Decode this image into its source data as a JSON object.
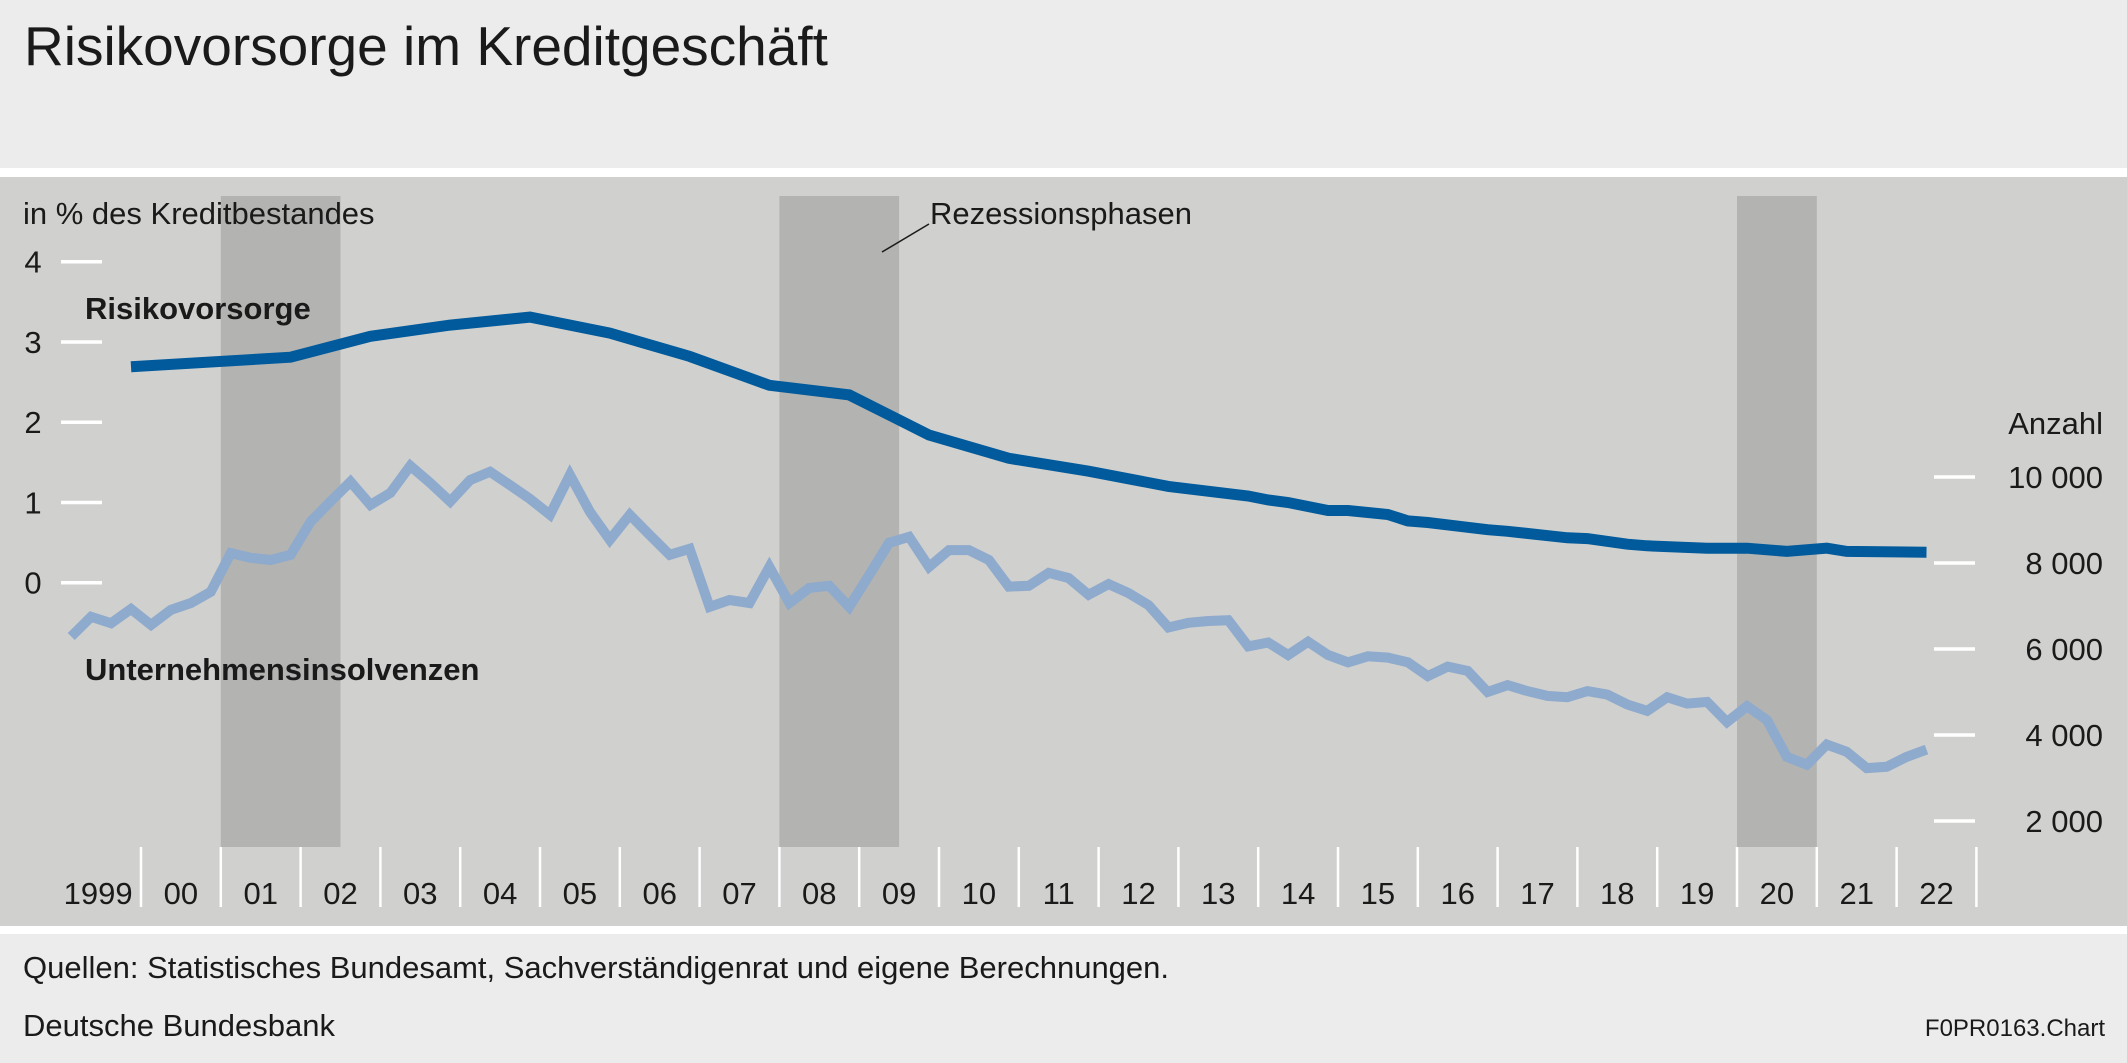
{
  "title": "Risikovorsorge im Kreditgeschäft",
  "footer": {
    "sources": "Quellen: Statistisches Bundesamt, Sachverständigenrat und eigene Berechnungen.",
    "publisher": "Deutsche Bundesbank",
    "chart_id": "F0PR0163.Chart"
  },
  "colors": {
    "background": "#ececec",
    "panel": "#d0d0ce",
    "recession_band": "#b3b3b1",
    "risikovorsorge": "#005a9c",
    "insolvenzen": "#8eaacd",
    "tick": "#ffffff"
  },
  "chart_data": {
    "type": "line",
    "left_axis": {
      "label": "in % des Kreditbestandes",
      "ticks": [
        "0",
        "1",
        "2",
        "3",
        "4"
      ],
      "range": [
        0,
        4
      ]
    },
    "right_axis": {
      "label": "Anzahl",
      "ticks": [
        "2 000",
        "4 000",
        "6 000",
        "8 000",
        "10 000"
      ],
      "tick_values": [
        2000,
        4000,
        6000,
        8000,
        10000
      ]
    },
    "x_axis": {
      "range": [
        1999,
        2023
      ],
      "tick_labels": [
        "1999",
        "00",
        "01",
        "02",
        "03",
        "04",
        "05",
        "06",
        "07",
        "08",
        "09",
        "10",
        "11",
        "12",
        "13",
        "14",
        "15",
        "16",
        "17",
        "18",
        "19",
        "20",
        "21",
        "22"
      ]
    },
    "annotation": "Rezessionsphasen",
    "recessions": [
      [
        "2001Q1",
        "2002Q2"
      ],
      [
        "2008Q1",
        "2009Q2"
      ],
      [
        "2020Q1",
        "2020Q4"
      ]
    ],
    "grid": false,
    "legend": "inline labels",
    "series": [
      {
        "name": "Risikovorsorge",
        "axis": "left",
        "points": [
          [
            "1999Q4",
            2.69
          ],
          [
            "2001Q4",
            2.81
          ],
          [
            "2002Q4",
            3.07
          ],
          [
            "2003Q4",
            3.21
          ],
          [
            "2004Q4",
            3.31
          ],
          [
            "2005Q4",
            3.11
          ],
          [
            "2006Q4",
            2.82
          ],
          [
            "2007Q4",
            2.46
          ],
          [
            "2008Q4",
            2.34
          ],
          [
            "2009Q4",
            1.84
          ],
          [
            "2010Q4",
            1.55
          ],
          [
            "2011Q4",
            1.39
          ],
          [
            "2012Q4",
            1.2
          ],
          [
            "2013Q4",
            1.08
          ],
          [
            "2014Q1",
            1.03
          ],
          [
            "2014Q2",
            1.0
          ],
          [
            "2014Q4",
            0.9
          ],
          [
            "2015Q1",
            0.9
          ],
          [
            "2015Q3",
            0.85
          ],
          [
            "2015Q4",
            0.77
          ],
          [
            "2016Q1",
            0.75
          ],
          [
            "2016Q3",
            0.69
          ],
          [
            "2016Q4",
            0.66
          ],
          [
            "2017Q1",
            0.64
          ],
          [
            "2017Q4",
            0.56
          ],
          [
            "2018Q1",
            0.55
          ],
          [
            "2018Q3",
            0.48
          ],
          [
            "2018Q4",
            0.46
          ],
          [
            "2019Q3",
            0.43
          ],
          [
            "2020Q1",
            0.43
          ],
          [
            "2020Q3",
            0.39
          ],
          [
            "2021Q1",
            0.43
          ],
          [
            "2021Q2",
            0.39
          ],
          [
            "2022Q2",
            0.38
          ]
        ]
      },
      {
        "name": "Unternehmensinsolvenzen",
        "axis": "right",
        "points": [
          [
            "1999Q1",
            6290
          ],
          [
            "1999Q2",
            6750
          ],
          [
            "1999Q3",
            6600
          ],
          [
            "1999Q4",
            6930
          ],
          [
            "2000Q1",
            6560
          ],
          [
            "2000Q2",
            6910
          ],
          [
            "2000Q3",
            7070
          ],
          [
            "2000Q4",
            7330
          ],
          [
            "2001Q1",
            8230
          ],
          [
            "2001Q2",
            8120
          ],
          [
            "2001Q3",
            8070
          ],
          [
            "2001Q4",
            8190
          ],
          [
            "2002Q1",
            8960
          ],
          [
            "2002Q2",
            9430
          ],
          [
            "2002Q3",
            9890
          ],
          [
            "2002Q4",
            9350
          ],
          [
            "2003Q1",
            9630
          ],
          [
            "2003Q2",
            10260
          ],
          [
            "2003Q3",
            9860
          ],
          [
            "2003Q4",
            9430
          ],
          [
            "2004Q1",
            9930
          ],
          [
            "2004Q2",
            10120
          ],
          [
            "2004Q3",
            9810
          ],
          [
            "2004Q4",
            9490
          ],
          [
            "2005Q1",
            9120
          ],
          [
            "2005Q2",
            10050
          ],
          [
            "2005Q3",
            9190
          ],
          [
            "2005Q4",
            8540
          ],
          [
            "2006Q1",
            9120
          ],
          [
            "2006Q2",
            8650
          ],
          [
            "2006Q3",
            8190
          ],
          [
            "2006Q4",
            8330
          ],
          [
            "2007Q1",
            6980
          ],
          [
            "2007Q2",
            7140
          ],
          [
            "2007Q3",
            7070
          ],
          [
            "2007Q4",
            7910
          ],
          [
            "2008Q1",
            7070
          ],
          [
            "2008Q2",
            7420
          ],
          [
            "2008Q3",
            7470
          ],
          [
            "2008Q4",
            6980
          ],
          [
            "2009Q1",
            7720
          ],
          [
            "2009Q2",
            8470
          ],
          [
            "2009Q3",
            8610
          ],
          [
            "2009Q4",
            7910
          ],
          [
            "2010Q1",
            8300
          ],
          [
            "2010Q2",
            8300
          ],
          [
            "2010Q3",
            8070
          ],
          [
            "2010Q4",
            7450
          ],
          [
            "2011Q1",
            7470
          ],
          [
            "2011Q2",
            7770
          ],
          [
            "2011Q3",
            7650
          ],
          [
            "2011Q4",
            7260
          ],
          [
            "2012Q1",
            7510
          ],
          [
            "2012Q2",
            7300
          ],
          [
            "2012Q3",
            7020
          ],
          [
            "2012Q4",
            6500
          ],
          [
            "2013Q1",
            6610
          ],
          [
            "2013Q2",
            6650
          ],
          [
            "2013Q3",
            6670
          ],
          [
            "2013Q4",
            6060
          ],
          [
            "2014Q1",
            6150
          ],
          [
            "2014Q2",
            5860
          ],
          [
            "2014Q3",
            6170
          ],
          [
            "2014Q4",
            5860
          ],
          [
            "2015Q1",
            5690
          ],
          [
            "2015Q2",
            5830
          ],
          [
            "2015Q3",
            5800
          ],
          [
            "2015Q4",
            5690
          ],
          [
            "2016Q1",
            5370
          ],
          [
            "2016Q2",
            5590
          ],
          [
            "2016Q3",
            5490
          ],
          [
            "2016Q4",
            5000
          ],
          [
            "2017Q1",
            5160
          ],
          [
            "2017Q2",
            5020
          ],
          [
            "2017Q3",
            4910
          ],
          [
            "2017Q4",
            4880
          ],
          [
            "2018Q1",
            5020
          ],
          [
            "2018Q2",
            4940
          ],
          [
            "2018Q3",
            4710
          ],
          [
            "2018Q4",
            4560
          ],
          [
            "2019Q1",
            4880
          ],
          [
            "2019Q2",
            4730
          ],
          [
            "2019Q3",
            4770
          ],
          [
            "2019Q4",
            4300
          ],
          [
            "2020Q1",
            4670
          ],
          [
            "2020Q2",
            4350
          ],
          [
            "2020Q3",
            3490
          ],
          [
            "2020Q4",
            3310
          ],
          [
            "2021Q1",
            3780
          ],
          [
            "2021Q2",
            3610
          ],
          [
            "2021Q3",
            3230
          ],
          [
            "2021Q4",
            3260
          ],
          [
            "2022Q1",
            3490
          ],
          [
            "2022Q2",
            3660
          ]
        ]
      }
    ]
  }
}
